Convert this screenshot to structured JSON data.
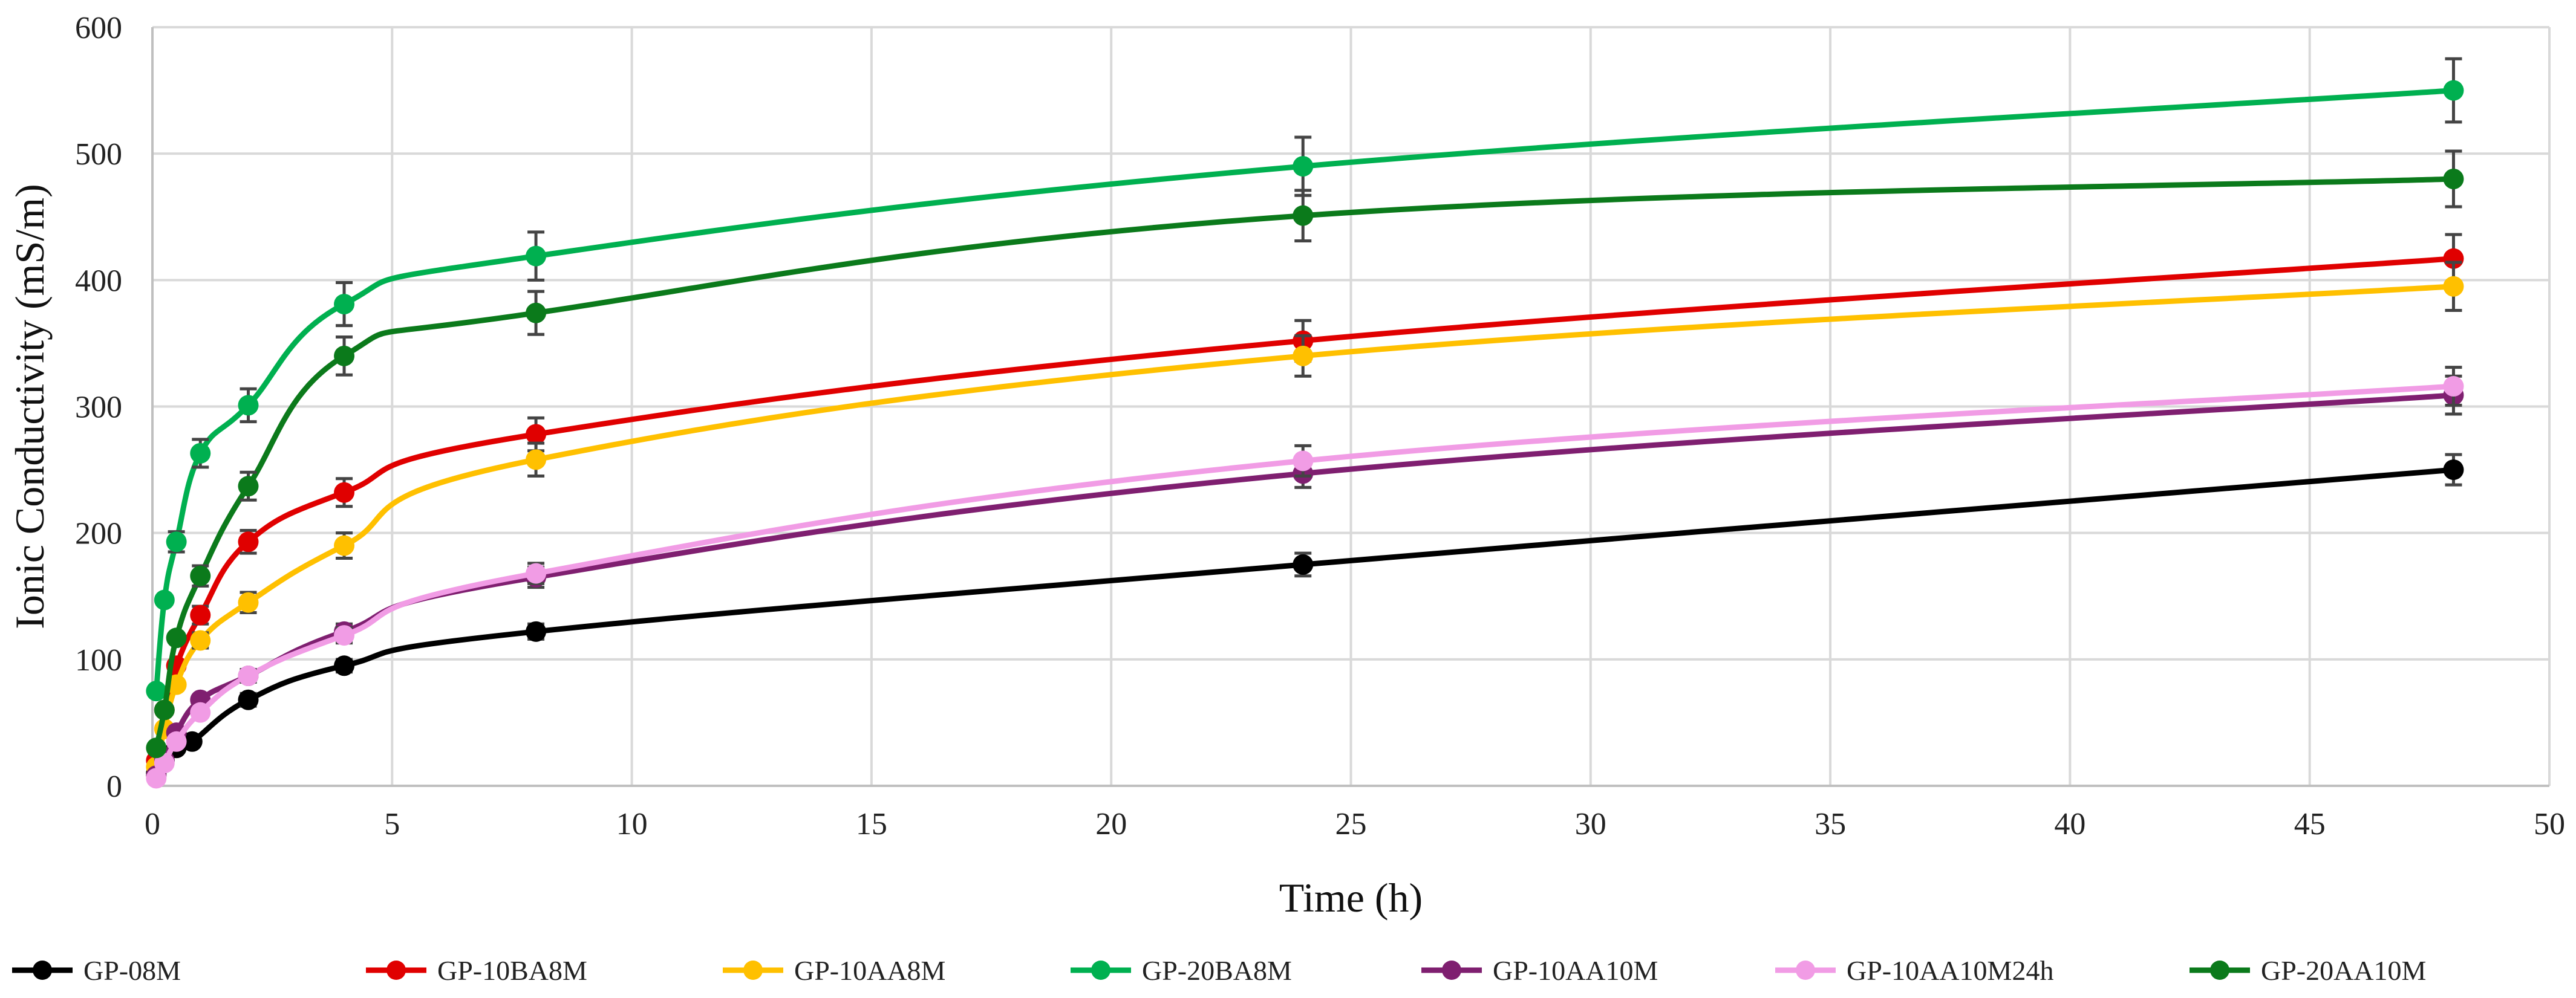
{
  "chart_data": {
    "type": "line",
    "title": "",
    "xlabel": "Time (h)",
    "ylabel": "Ionic Conductivity (mS/m)",
    "xlim": [
      0,
      50
    ],
    "ylim": [
      0,
      600
    ],
    "xticks": [
      0,
      5,
      10,
      15,
      20,
      25,
      30,
      35,
      40,
      45,
      50
    ],
    "yticks": [
      0,
      100,
      200,
      300,
      400,
      500,
      600
    ],
    "grid": true,
    "legend_position": "bottom",
    "x": [
      0.08,
      0.25,
      0.5,
      1,
      2,
      4,
      8,
      24,
      48
    ],
    "series": [
      {
        "name": "GP-08M",
        "color": "#000000",
        "x": [
          0.08,
          0.25,
          0.5,
          0.83,
          2,
          4,
          8,
          24,
          48
        ],
        "values": [
          10,
          20,
          30,
          35,
          68,
          95,
          122,
          175,
          250
        ],
        "errors": [
          0,
          0,
          0,
          0,
          5,
          5,
          6,
          9,
          12
        ]
      },
      {
        "name": "GP-10BA8M",
        "color": "#E00000",
        "x": [
          0.08,
          0.25,
          0.5,
          1,
          2,
          4,
          8,
          24,
          48
        ],
        "values": [
          20,
          60,
          95,
          135,
          193,
          232,
          278,
          352,
          417
        ],
        "errors": [
          0,
          0,
          0,
          7,
          9,
          11,
          13,
          16,
          19
        ]
      },
      {
        "name": "GP-10AA8M",
        "color": "#FFC000",
        "x": [
          0.08,
          0.25,
          0.5,
          1,
          2,
          4,
          8,
          24,
          48
        ],
        "values": [
          15,
          45,
          80,
          115,
          145,
          190,
          258,
          340,
          395
        ],
        "errors": [
          0,
          0,
          0,
          6,
          8,
          10,
          13,
          16,
          19
        ]
      },
      {
        "name": "GP-20BA8M",
        "color": "#00B050",
        "x": [
          0.08,
          0.25,
          0.5,
          1,
          2,
          4,
          8,
          24,
          48
        ],
        "values": [
          75,
          147,
          193,
          263,
          301,
          381,
          419,
          490,
          550
        ],
        "errors": [
          0,
          0,
          8,
          11,
          13,
          17,
          19,
          23,
          25
        ]
      },
      {
        "name": "GP-10AA10M",
        "color": "#7F1F70",
        "x": [
          0.08,
          0.25,
          0.5,
          1,
          2,
          4,
          8,
          24,
          48
        ],
        "values": [
          8,
          20,
          42,
          68,
          87,
          122,
          165,
          247,
          309
        ],
        "errors": [
          0,
          0,
          0,
          0,
          5,
          6,
          8,
          11,
          15
        ]
      },
      {
        "name": "GP-10AA10M24h",
        "color": "#F19CE5",
        "x": [
          0.08,
          0.25,
          0.5,
          1,
          2,
          4,
          8,
          24,
          48
        ],
        "values": [
          6,
          18,
          35,
          58,
          87,
          119,
          168,
          257,
          316
        ],
        "errors": [
          0,
          0,
          0,
          0,
          5,
          6,
          8,
          12,
          15
        ]
      },
      {
        "name": "GP-20AA10M",
        "color": "#0B7A1B",
        "x": [
          0.08,
          0.25,
          0.5,
          1,
          2,
          4,
          8,
          24,
          48
        ],
        "values": [
          30,
          60,
          117,
          166,
          237,
          340,
          374,
          451,
          480
        ],
        "errors": [
          0,
          0,
          0,
          8,
          11,
          15,
          17,
          20,
          22
        ]
      }
    ]
  }
}
